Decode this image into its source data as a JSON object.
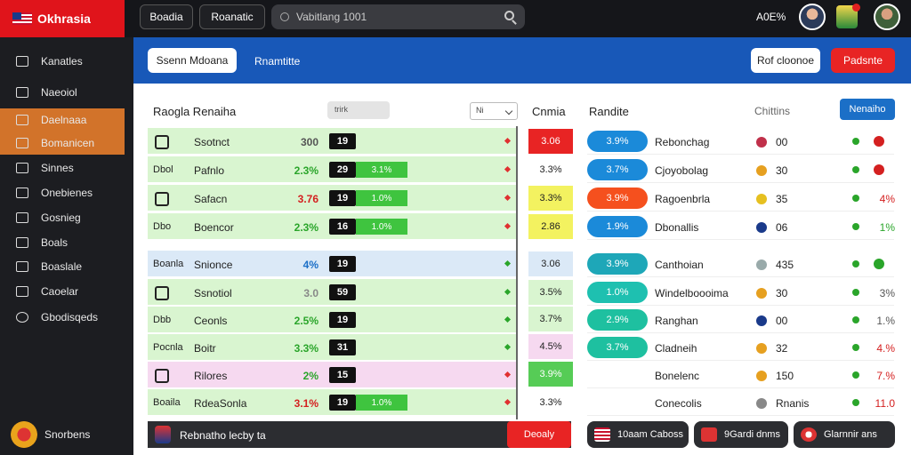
{
  "app": {
    "logo": "Okhrasia"
  },
  "topbar": {
    "btn1": "Boadia",
    "btn2": "Roanatic",
    "search_placeholder": "Vabitlang 1001",
    "stat": "A0E%"
  },
  "sidebar": {
    "items": [
      "Kanatles",
      "Naeoiol",
      "Daelnaaa",
      "Bomanicen",
      "Sinnes",
      "Onebienes",
      "Gosnieg",
      "Boals",
      "Boaslale",
      "Caoelar",
      "Gbodisqeds"
    ],
    "footer": "Snorbens"
  },
  "banner": {
    "btn_left": "Ssenn Mdoana",
    "tab": "Rnamtitte",
    "btn_right1": "Rof cloonoe",
    "btn_right2": "Padsnte"
  },
  "left_section": {
    "title": "Raogla Renaiha",
    "select_a": "trirk",
    "select_b": "Ni"
  },
  "odds_section": {
    "title": "Cnmia"
  },
  "right_section": {
    "title": "Randite",
    "label": "Chittins",
    "button": "Nenaiho"
  },
  "left_rows": [
    {
      "team": "",
      "name": "Ssotnct",
      "pct": "300",
      "score": "19",
      "bar": "",
      "bg": "#d9f5d0",
      "pct_color": "#555",
      "diamond": "#e03030"
    },
    {
      "team": "Dbol",
      "name": "Pafnlo",
      "pct": "2.3%",
      "score": "29",
      "bar": "3.1%",
      "bg": "#d9f5d0",
      "pct_color": "#2aa52a",
      "diamond": "#e03030"
    },
    {
      "team": "",
      "name": "Safacn",
      "pct": "3.76",
      "score": "19",
      "bar": "1.0%",
      "bg": "#d9f5d0",
      "pct_color": "#d42020",
      "diamond": "#e03030"
    },
    {
      "team": "Dbo",
      "name": "Boencor",
      "pct": "2.3%",
      "score": "16",
      "bar": "1.0%",
      "bg": "#d9f5d0",
      "pct_color": "#2aa52a",
      "diamond": "#e03030"
    },
    {
      "team": "Boanla",
      "name": "Snionce",
      "pct": "4%",
      "score": "19",
      "bar": "",
      "bg": "#dbe9f7",
      "pct_color": "#1b6fc7",
      "diamond": "#2aa52a"
    },
    {
      "team": "",
      "name": "Ssnotiol",
      "pct": "3.0",
      "score": "59",
      "bar": "",
      "bg": "#d9f5d0",
      "pct_color": "#888",
      "diamond": "#2aa52a"
    },
    {
      "team": "Dbb",
      "name": "Ceonls",
      "pct": "2.5%",
      "score": "19",
      "bar": "",
      "bg": "#d9f5d0",
      "pct_color": "#2aa52a",
      "diamond": "#2aa52a"
    },
    {
      "team": "Pocnla",
      "name": "Boitr",
      "pct": "3.3%",
      "score": "31",
      "bar": "",
      "bg": "#d9f5d0",
      "pct_color": "#2aa52a",
      "diamond": "#2aa52a"
    },
    {
      "team": "",
      "name": "Rilores",
      "pct": "2%",
      "score": "15",
      "bar": "",
      "bg": "#f6d9f0",
      "pct_color": "#2aa52a",
      "diamond": "#e03030"
    },
    {
      "team": "Boaila",
      "name": "RdeaSonla",
      "pct": "3.1%",
      "score": "19",
      "bar": "1.0%",
      "bg": "#d9f5d0",
      "pct_color": "#d42020",
      "diamond": "#e03030"
    }
  ],
  "odds": [
    {
      "value": "3.06",
      "bg": "#e82424",
      "color": "#fff"
    },
    {
      "value": "3.3%",
      "bg": "#fff",
      "color": "#222"
    },
    {
      "value": "3.3%",
      "bg": "#f3f260",
      "color": "#222"
    },
    {
      "value": "2.86",
      "bg": "#f3f260",
      "color": "#222"
    },
    {
      "value": "3.06",
      "bg": "#dbe9f7",
      "color": "#222"
    },
    {
      "value": "3.5%",
      "bg": "#d9f5d0",
      "color": "#222"
    },
    {
      "value": "3.7%",
      "bg": "#d9f5d0",
      "color": "#222"
    },
    {
      "value": "4.5%",
      "bg": "#f6d9f0",
      "color": "#222"
    },
    {
      "value": "3.9%",
      "bg": "#56cc56",
      "color": "#fff"
    },
    {
      "value": "3.3%",
      "bg": "#fff",
      "color": "#222"
    }
  ],
  "right_rows": [
    {
      "chip": "3.9%",
      "chip_color": "#1b8ad9",
      "name": "Rebonchag",
      "mini": "#c0304a",
      "num": "00",
      "tail": "",
      "tail_color": "#d42020"
    },
    {
      "chip": "3.7%",
      "chip_color": "#1b8ad9",
      "name": "Cjoyobolag",
      "mini": "#e6a020",
      "num": "30",
      "tail": "",
      "tail_color": "#d42020"
    },
    {
      "chip": "3.9%",
      "chip_color": "#f5501e",
      "name": "Ragoenbrla",
      "mini": "#e6c020",
      "num": "35",
      "tail": "4%",
      "tail_color": "#d42020"
    },
    {
      "chip": "1.9%",
      "chip_color": "#1b8ad9",
      "name": "Dbonallis",
      "mini": "#1a3a8a",
      "num": "06",
      "tail": "1%",
      "tail_color": "#2aa52a"
    },
    {
      "chip": "3.9%",
      "chip_color": "#1ea7b8",
      "name": "Canthoian",
      "mini": "#9aa",
      "num": "435",
      "tail": "",
      "tail_color": "#2aa52a"
    },
    {
      "chip": "1.0%",
      "chip_color": "#1ec0b0",
      "name": "Windelboooima",
      "mini": "#e6a020",
      "num": "30",
      "tail": "3%",
      "tail_color": "#555"
    },
    {
      "chip": "2.9%",
      "chip_color": "#1ec0a0",
      "name": "Ranghan",
      "mini": "#1a3a8a",
      "num": "00",
      "tail": "1.%",
      "tail_color": "#555"
    },
    {
      "chip": "3.7%",
      "chip_color": "#1ec0a0",
      "name": "Cladneih",
      "mini": "#e6a020",
      "num": "32",
      "tail": "4.%",
      "tail_color": "#d42020"
    },
    {
      "chip": "",
      "chip_color": "",
      "name": "Bonelenc",
      "mini": "#e6a020",
      "num": "150",
      "tail": "7.%",
      "tail_color": "#d42020"
    },
    {
      "chip": "",
      "chip_color": "",
      "name": "Conecolis",
      "mini": "#888",
      "num": "Rnanis",
      "tail": "11.0",
      "tail_color": "#d42020"
    }
  ],
  "footer": {
    "bar_text": "Rebnatho lecby ta",
    "bar_button": "Deoaly",
    "btn1": "10aam Caboss",
    "btn2": "9Gardi dnms",
    "btn3": "Glarnnir ans"
  }
}
